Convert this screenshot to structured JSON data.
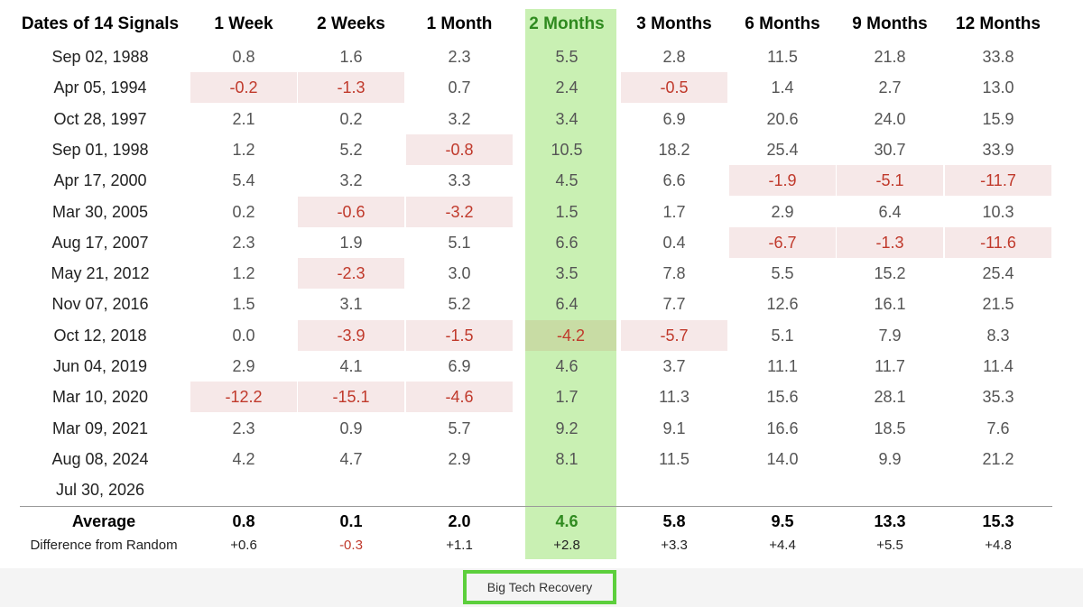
{
  "table": {
    "headers": [
      "Dates of 14 Signals",
      "1 Week",
      "2 Weeks",
      "1 Month",
      "2 Months",
      "3 Months",
      "6 Months",
      "9 Months",
      "12 Months"
    ],
    "rows": [
      {
        "date": "Sep 02, 1988",
        "values": [
          "0.8",
          "1.6",
          "2.3",
          "5.5",
          "2.8",
          "11.5",
          "21.8",
          "33.8"
        ]
      },
      {
        "date": "Apr 05, 1994",
        "values": [
          "-0.2",
          "-1.3",
          "0.7",
          "2.4",
          "-0.5",
          "1.4",
          "2.7",
          "13.0"
        ]
      },
      {
        "date": "Oct 28, 1997",
        "values": [
          "2.1",
          "0.2",
          "3.2",
          "3.4",
          "6.9",
          "20.6",
          "24.0",
          "15.9"
        ]
      },
      {
        "date": "Sep 01, 1998",
        "values": [
          "1.2",
          "5.2",
          "-0.8",
          "10.5",
          "18.2",
          "25.4",
          "30.7",
          "33.9"
        ]
      },
      {
        "date": "Apr 17, 2000",
        "values": [
          "5.4",
          "3.2",
          "3.3",
          "4.5",
          "6.6",
          "-1.9",
          "-5.1",
          "-11.7"
        ]
      },
      {
        "date": "Mar 30, 2005",
        "values": [
          "0.2",
          "-0.6",
          "-3.2",
          "1.5",
          "1.7",
          "2.9",
          "6.4",
          "10.3"
        ]
      },
      {
        "date": "Aug 17, 2007",
        "values": [
          "2.3",
          "1.9",
          "5.1",
          "6.6",
          "0.4",
          "-6.7",
          "-1.3",
          "-11.6"
        ]
      },
      {
        "date": "May 21, 2012",
        "values": [
          "1.2",
          "-2.3",
          "3.0",
          "3.5",
          "7.8",
          "5.5",
          "15.2",
          "25.4"
        ]
      },
      {
        "date": "Nov 07, 2016",
        "values": [
          "1.5",
          "3.1",
          "5.2",
          "6.4",
          "7.7",
          "12.6",
          "16.1",
          "21.5"
        ]
      },
      {
        "date": "Oct 12, 2018",
        "values": [
          "0.0",
          "-3.9",
          "-1.5",
          "-4.2",
          "-5.7",
          "5.1",
          "7.9",
          "8.3"
        ]
      },
      {
        "date": "Jun 04, 2019",
        "values": [
          "2.9",
          "4.1",
          "6.9",
          "4.6",
          "3.7",
          "11.1",
          "11.7",
          "11.4"
        ]
      },
      {
        "date": "Mar 10, 2020",
        "values": [
          "-12.2",
          "-15.1",
          "-4.6",
          "1.7",
          "11.3",
          "15.6",
          "28.1",
          "35.3"
        ]
      },
      {
        "date": "Mar 09, 2021",
        "values": [
          "2.3",
          "0.9",
          "5.7",
          "9.2",
          "9.1",
          "16.6",
          "18.5",
          "7.6"
        ]
      },
      {
        "date": "Aug 08, 2024",
        "values": [
          "4.2",
          "4.7",
          "2.9",
          "8.1",
          "11.5",
          "14.0",
          "9.9",
          "21.2"
        ]
      },
      {
        "date": "Jul 30, 2026",
        "values": [
          "",
          "",
          "",
          "",
          "",
          "",
          "",
          ""
        ]
      }
    ],
    "average": {
      "label": "Average",
      "values": [
        "0.8",
        "0.1",
        "2.0",
        "4.6",
        "5.8",
        "9.5",
        "13.3",
        "15.3"
      ]
    },
    "difference": {
      "label": "Difference from Random",
      "values": [
        "+0.6",
        "-0.3",
        "+1.1",
        "+2.8",
        "+3.3",
        "+4.4",
        "+5.5",
        "+4.8"
      ]
    },
    "highlighted_column": "2 Months"
  },
  "footer": {
    "button_label": "Big Tech Recovery"
  },
  "colors": {
    "highlight": "#c9f0b3",
    "header_highlight_text": "#2f8a1f",
    "negative_text": "#c0392b",
    "negative_bg": "#f6e8e8",
    "footer_border": "#5ccf3c"
  }
}
